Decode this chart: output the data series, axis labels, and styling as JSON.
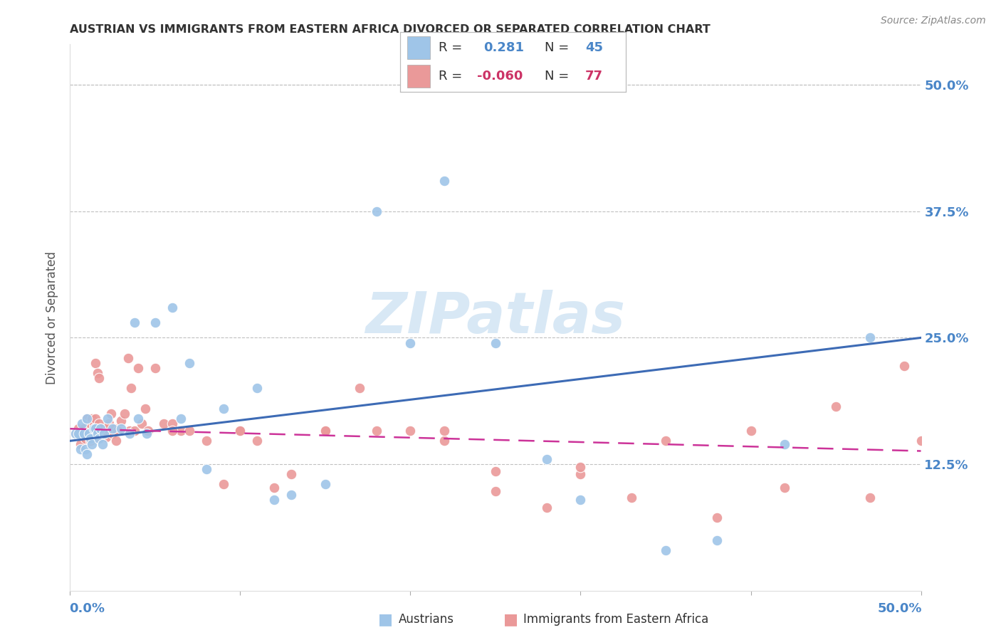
{
  "title": "AUSTRIAN VS IMMIGRANTS FROM EASTERN AFRICA DIVORCED OR SEPARATED CORRELATION CHART",
  "source": "Source: ZipAtlas.com",
  "ylabel": "Divorced or Separated",
  "ytick_labels": [
    "12.5%",
    "25.0%",
    "37.5%",
    "50.0%"
  ],
  "ytick_values": [
    0.125,
    0.25,
    0.375,
    0.5
  ],
  "xlim": [
    0.0,
    0.5
  ],
  "ylim": [
    0.0,
    0.54
  ],
  "legend_R_blue": "0.281",
  "legend_N_blue": "45",
  "legend_R_pink": "-0.060",
  "legend_N_pink": "77",
  "blue_color": "#9fc5e8",
  "pink_color": "#ea9999",
  "trendline_blue": "#3d6bb5",
  "trendline_pink": "#cc3399",
  "background_color": "#ffffff",
  "grid_color": "#c0c0c0",
  "watermark_color": "#d8e8f5",
  "blue_label_color": "#4a86c8",
  "pink_label_color": "#cc3366",
  "blue_x": [
    0.003,
    0.005,
    0.006,
    0.007,
    0.008,
    0.009,
    0.01,
    0.01,
    0.011,
    0.012,
    0.013,
    0.014,
    0.015,
    0.016,
    0.017,
    0.018,
    0.019,
    0.02,
    0.022,
    0.025,
    0.03,
    0.035,
    0.038,
    0.04,
    0.045,
    0.05,
    0.06,
    0.065,
    0.07,
    0.08,
    0.09,
    0.11,
    0.12,
    0.13,
    0.15,
    0.18,
    0.2,
    0.22,
    0.25,
    0.28,
    0.3,
    0.35,
    0.38,
    0.42,
    0.47
  ],
  "blue_y": [
    0.155,
    0.155,
    0.14,
    0.165,
    0.155,
    0.14,
    0.135,
    0.17,
    0.155,
    0.15,
    0.145,
    0.16,
    0.16,
    0.155,
    0.15,
    0.16,
    0.145,
    0.155,
    0.17,
    0.16,
    0.16,
    0.155,
    0.265,
    0.17,
    0.155,
    0.265,
    0.28,
    0.17,
    0.225,
    0.12,
    0.18,
    0.2,
    0.09,
    0.095,
    0.105,
    0.375,
    0.245,
    0.405,
    0.245,
    0.13,
    0.09,
    0.04,
    0.05,
    0.145,
    0.25
  ],
  "pink_x": [
    0.003,
    0.004,
    0.005,
    0.006,
    0.007,
    0.008,
    0.009,
    0.01,
    0.01,
    0.011,
    0.012,
    0.012,
    0.013,
    0.013,
    0.014,
    0.014,
    0.015,
    0.015,
    0.016,
    0.016,
    0.017,
    0.017,
    0.018,
    0.019,
    0.02,
    0.021,
    0.022,
    0.023,
    0.024,
    0.025,
    0.026,
    0.027,
    0.028,
    0.03,
    0.032,
    0.034,
    0.035,
    0.036,
    0.038,
    0.04,
    0.042,
    0.044,
    0.046,
    0.05,
    0.055,
    0.06,
    0.065,
    0.07,
    0.08,
    0.09,
    0.1,
    0.11,
    0.12,
    0.13,
    0.15,
    0.17,
    0.2,
    0.22,
    0.25,
    0.28,
    0.3,
    0.33,
    0.38,
    0.42,
    0.47,
    0.49,
    0.5,
    0.45,
    0.4,
    0.35,
    0.3,
    0.25,
    0.22,
    0.18,
    0.15,
    0.1,
    0.06
  ],
  "pink_y": [
    0.155,
    0.155,
    0.16,
    0.145,
    0.155,
    0.16,
    0.15,
    0.155,
    0.17,
    0.155,
    0.148,
    0.165,
    0.155,
    0.17,
    0.16,
    0.165,
    0.17,
    0.225,
    0.15,
    0.215,
    0.165,
    0.21,
    0.16,
    0.155,
    0.155,
    0.152,
    0.16,
    0.165,
    0.175,
    0.155,
    0.16,
    0.148,
    0.158,
    0.168,
    0.175,
    0.23,
    0.158,
    0.2,
    0.158,
    0.22,
    0.165,
    0.18,
    0.158,
    0.22,
    0.165,
    0.165,
    0.158,
    0.158,
    0.148,
    0.105,
    0.158,
    0.148,
    0.102,
    0.115,
    0.158,
    0.2,
    0.158,
    0.148,
    0.098,
    0.082,
    0.115,
    0.092,
    0.072,
    0.102,
    0.092,
    0.222,
    0.148,
    0.182,
    0.158,
    0.148,
    0.122,
    0.118,
    0.158,
    0.158,
    0.158,
    0.158,
    0.158
  ]
}
